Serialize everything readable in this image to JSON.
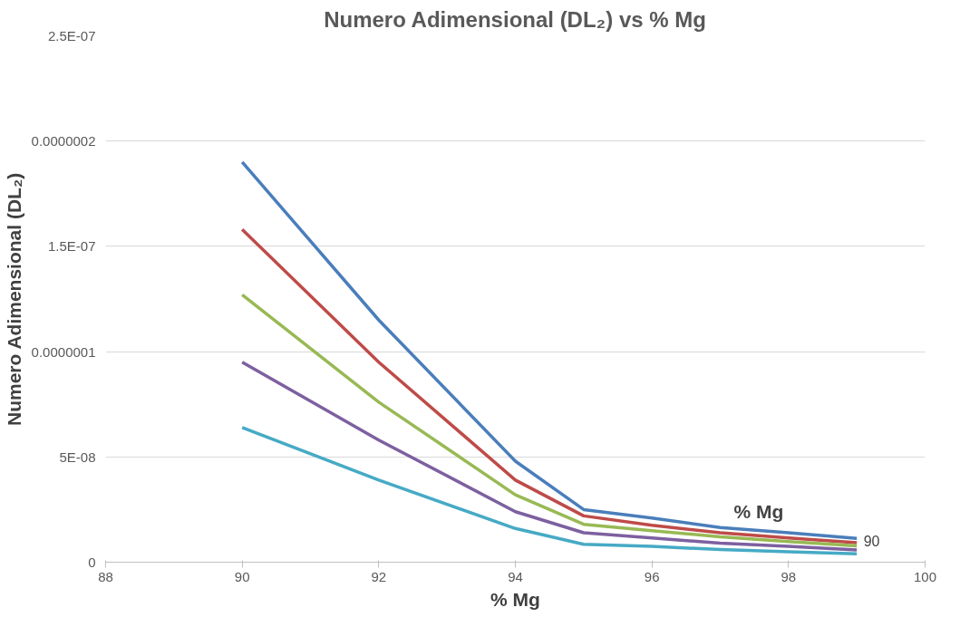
{
  "chart_data": {
    "type": "line",
    "title": "Numero Adimensional (DL₂) vs % Mg",
    "xlabel": "% Mg",
    "ylabel": "Numero Adimensional (DL₂)",
    "x": [
      90,
      92,
      94,
      95,
      96,
      97,
      98,
      99
    ],
    "series": [
      {
        "color": "#4a7ebb",
        "values": [
          1.9e-07,
          1.15e-07,
          4.8e-08,
          2.5e-08,
          2.1e-08,
          1.65e-08,
          1.4e-08,
          1.13e-08
        ]
      },
      {
        "color": "#be4b48",
        "values": [
          1.58e-07,
          9.5e-08,
          3.9e-08,
          2.2e-08,
          1.75e-08,
          1.4e-08,
          1.15e-08,
          9.3e-09
        ]
      },
      {
        "color": "#98b954",
        "values": [
          1.27e-07,
          7.6e-08,
          3.2e-08,
          1.8e-08,
          1.5e-08,
          1.2e-08,
          9.8e-09,
          7.7e-09
        ]
      },
      {
        "color": "#7d60a0",
        "values": [
          9.5e-08,
          5.8e-08,
          2.4e-08,
          1.4e-08,
          1.15e-08,
          9e-09,
          7.5e-09,
          5.8e-09
        ]
      },
      {
        "color": "#46aac5",
        "values": [
          6.4e-08,
          3.9e-08,
          1.6e-08,
          8.5e-09,
          7.5e-09,
          6e-09,
          5e-09,
          4e-09
        ]
      }
    ],
    "xlim": [
      88,
      100
    ],
    "xticks": [
      88,
      90,
      92,
      94,
      96,
      98,
      100
    ],
    "ylim": [
      0,
      2.5e-07
    ],
    "yticks": [
      0,
      {
        "value": 5e-08,
        "label": "5E-08"
      },
      {
        "value": 1e-07,
        "label": "0.0000001"
      },
      {
        "value": 1.5e-07,
        "label": "1.5E-07"
      },
      {
        "value": 2e-07,
        "label": "0.0000002"
      },
      {
        "value": 2.5e-07,
        "label": "2.5E-07"
      }
    ],
    "grid": "y",
    "marker": "none",
    "line_style": "solid",
    "annotations": [
      "% Mg",
      "90"
    ]
  }
}
